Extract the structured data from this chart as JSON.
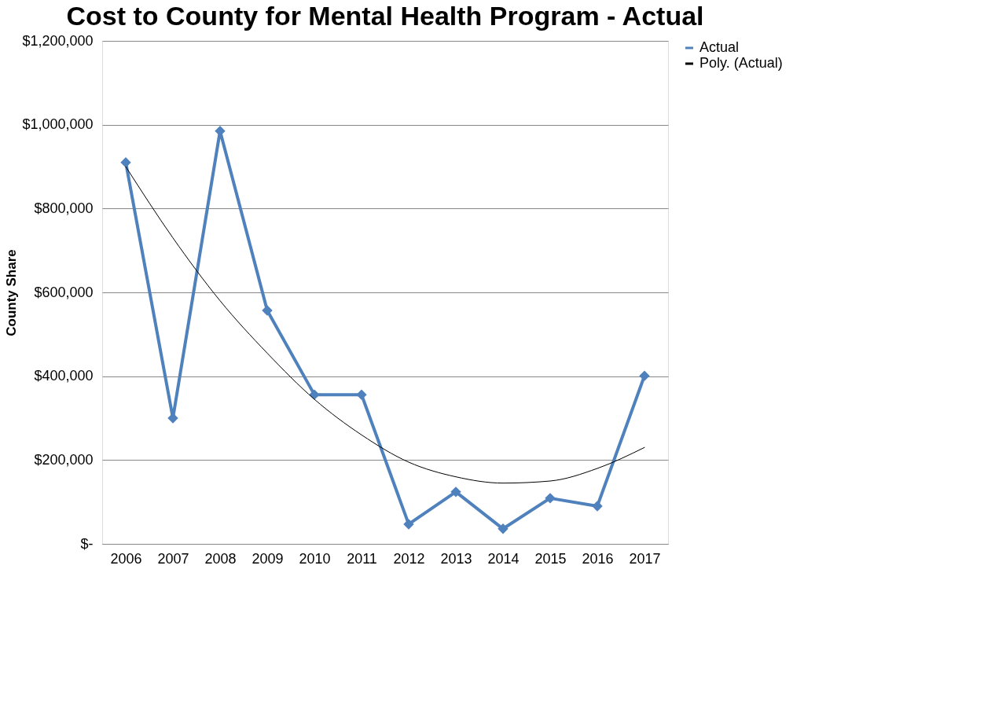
{
  "chart_data": {
    "type": "line",
    "title": "Cost to County for Mental Health Program - Actual",
    "ylabel": "County Share",
    "categories": [
      "2006",
      "2007",
      "2008",
      "2009",
      "2010",
      "2011",
      "2012",
      "2013",
      "2014",
      "2015",
      "2016",
      "2017"
    ],
    "series": [
      {
        "name": "Actual",
        "color": "#4f81bd",
        "marker": "diamond",
        "values": [
          910000,
          300000,
          985000,
          557000,
          356000,
          356000,
          47000,
          124000,
          36000,
          109000,
          90000,
          401000
        ]
      },
      {
        "name": "Poly. (Actual)",
        "color": "#000000",
        "marker": "none",
        "values": [
          900000,
          730000,
          580000,
          455000,
          345000,
          260000,
          195000,
          160000,
          145000,
          150000,
          180000,
          230000
        ]
      }
    ],
    "ylim": [
      0,
      1200000
    ],
    "yticks": [
      {
        "value": 0,
        "label": "$-"
      },
      {
        "value": 200000,
        "label": "$200,000"
      },
      {
        "value": 400000,
        "label": "$400,000"
      },
      {
        "value": 600000,
        "label": "$600,000"
      },
      {
        "value": 800000,
        "label": "$800,000"
      },
      {
        "value": 1000000,
        "label": "$1,000,000"
      },
      {
        "value": 1200000,
        "label": "$1,200,000"
      }
    ],
    "grid": "y",
    "legend": "right"
  }
}
